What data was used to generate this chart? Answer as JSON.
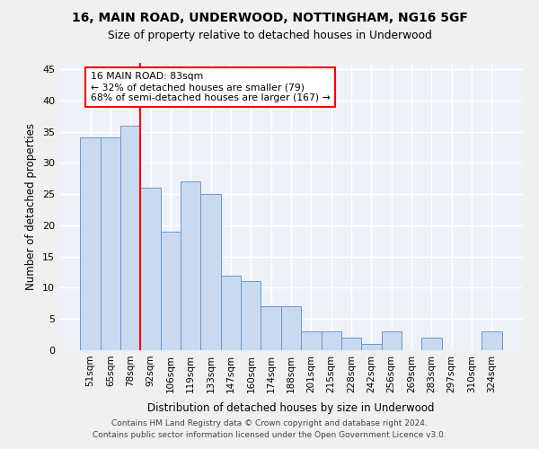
{
  "title1": "16, MAIN ROAD, UNDERWOOD, NOTTINGHAM, NG16 5GF",
  "title2": "Size of property relative to detached houses in Underwood",
  "xlabel": "Distribution of detached houses by size in Underwood",
  "ylabel": "Number of detached properties",
  "categories": [
    "51sqm",
    "65sqm",
    "78sqm",
    "92sqm",
    "106sqm",
    "119sqm",
    "133sqm",
    "147sqm",
    "160sqm",
    "174sqm",
    "188sqm",
    "201sqm",
    "215sqm",
    "228sqm",
    "242sqm",
    "256sqm",
    "269sqm",
    "283sqm",
    "297sqm",
    "310sqm",
    "324sqm"
  ],
  "values": [
    34,
    34,
    36,
    26,
    19,
    27,
    25,
    12,
    11,
    7,
    7,
    3,
    3,
    2,
    1,
    3,
    0,
    2,
    0,
    0,
    3
  ],
  "bar_color": "#c9d9f0",
  "bar_edge_color": "#6699cc",
  "vline_x_idx": 2,
  "vline_color": "red",
  "annotation_text": "16 MAIN ROAD: 83sqm\n← 32% of detached houses are smaller (79)\n68% of semi-detached houses are larger (167) →",
  "box_color": "red",
  "ylim": [
    0,
    46
  ],
  "yticks": [
    0,
    5,
    10,
    15,
    20,
    25,
    30,
    35,
    40,
    45
  ],
  "background_color": "#eef2f8",
  "grid_color": "#ffffff",
  "footer1": "Contains HM Land Registry data © Crown copyright and database right 2024.",
  "footer2": "Contains public sector information licensed under the Open Government Licence v3.0."
}
